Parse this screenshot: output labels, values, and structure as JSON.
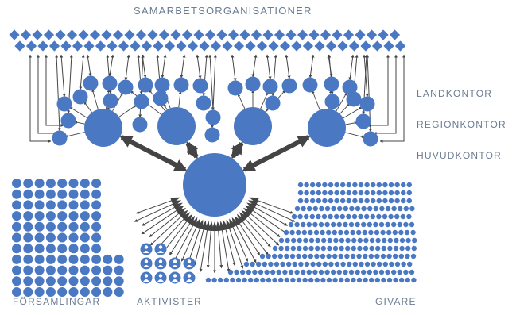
{
  "labels": {
    "partners": "SAMARBETSORGANISATIONER",
    "country_offices": "LANDKONTOR",
    "regional_offices": "REGIONKONTOR",
    "head_office": "HUVUDKONTOR",
    "congregations": "FÖRSAMLINGAR",
    "activists": "AKTIVISTER",
    "donors": "GIVARE"
  },
  "colors": {
    "primary": "#4a78c2",
    "arrow": "#444444",
    "label": "#6b7c93"
  },
  "icons": {
    "activist": "person-icon"
  }
}
